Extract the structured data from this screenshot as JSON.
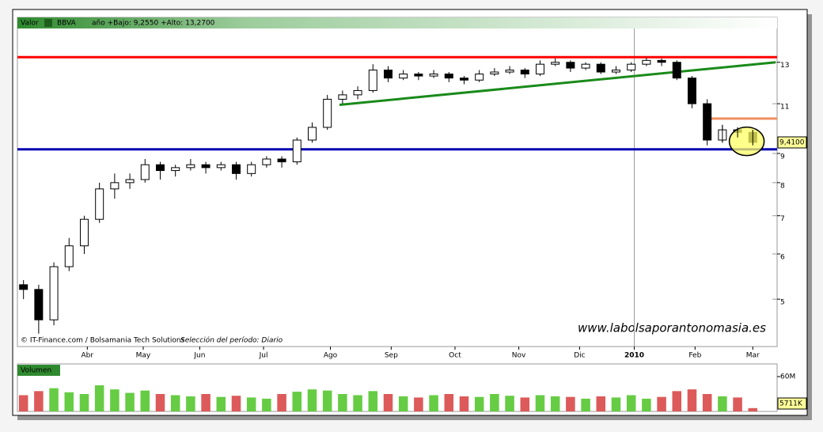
{
  "header": {
    "label": "Valor",
    "ticker": "BBVA",
    "range_text": "año +Bajo: 9,2550 +Alto: 13,2700"
  },
  "footer": {
    "credit": "© IT-Finance.com / Bolsamania Tech Solutions",
    "period": "Selección del período: Diario"
  },
  "watermark": "www.labolsaporantonomasia.es",
  "chart_data": [
    {
      "type": "candlestick",
      "log_scale": true,
      "up_color": "#ffffff",
      "down_color": "#000000",
      "x": [
        2,
        7,
        12,
        17,
        22,
        27,
        32,
        37,
        42,
        47,
        52,
        57,
        62,
        67,
        72,
        77,
        82,
        87,
        92,
        97,
        102,
        107,
        112,
        117,
        122,
        127,
        132,
        137,
        142,
        147,
        152,
        157,
        162,
        167,
        172,
        177,
        182,
        187,
        192,
        197,
        202,
        207,
        212,
        217,
        222,
        227,
        232,
        237,
        242
      ],
      "open": [
        5.3,
        5.2,
        4.6,
        5.7,
        6.2,
        6.9,
        7.8,
        8.0,
        8.1,
        8.6,
        8.4,
        8.5,
        8.6,
        8.5,
        8.6,
        8.3,
        8.6,
        8.8,
        8.7,
        9.5,
        10.0,
        11.2,
        11.4,
        11.6,
        12.6,
        12.2,
        12.4,
        12.3,
        12.4,
        12.2,
        12.1,
        12.4,
        12.5,
        12.6,
        12.4,
        12.9,
        13.0,
        12.7,
        12.9,
        12.5,
        12.6,
        12.9,
        13.1,
        13.0,
        12.2,
        11.0,
        9.5,
        9.9,
        9.8
      ],
      "high": [
        5.4,
        5.3,
        5.8,
        6.4,
        7.0,
        8.0,
        8.3,
        8.3,
        8.8,
        8.7,
        8.6,
        8.8,
        8.7,
        8.7,
        8.7,
        8.7,
        8.9,
        8.9,
        9.6,
        10.2,
        11.4,
        11.6,
        11.8,
        12.9,
        12.8,
        12.6,
        12.5,
        12.6,
        12.5,
        12.3,
        12.6,
        12.7,
        12.8,
        12.7,
        13.1,
        13.2,
        13.1,
        13.0,
        13.0,
        12.8,
        13.0,
        13.25,
        13.2,
        13.1,
        12.3,
        11.2,
        10.1,
        10.0,
        9.9
      ],
      "low": [
        5.0,
        4.35,
        4.5,
        5.6,
        6.0,
        6.8,
        7.5,
        7.8,
        8.0,
        8.1,
        8.2,
        8.4,
        8.3,
        8.4,
        8.1,
        8.2,
        8.5,
        8.5,
        8.6,
        9.4,
        9.9,
        11.0,
        11.2,
        11.5,
        12.0,
        12.1,
        12.1,
        12.2,
        12.0,
        11.9,
        12.0,
        12.3,
        12.4,
        12.2,
        12.3,
        12.8,
        12.5,
        12.6,
        12.4,
        12.4,
        12.5,
        12.8,
        12.8,
        12.1,
        10.8,
        9.3,
        9.4,
        9.6,
        9.3
      ],
      "close": [
        5.2,
        4.6,
        5.7,
        6.2,
        6.9,
        7.8,
        8.0,
        8.1,
        8.6,
        8.4,
        8.5,
        8.6,
        8.5,
        8.6,
        8.3,
        8.6,
        8.8,
        8.7,
        9.5,
        10.0,
        11.2,
        11.4,
        11.6,
        12.6,
        12.2,
        12.4,
        12.3,
        12.4,
        12.2,
        12.1,
        12.4,
        12.5,
        12.6,
        12.4,
        12.9,
        13.0,
        12.7,
        12.9,
        12.5,
        12.6,
        12.9,
        13.1,
        13.0,
        12.2,
        11.0,
        9.5,
        9.9,
        9.8,
        9.41
      ],
      "last_label": "9,4100",
      "xlim": [
        0,
        250
      ],
      "xticks": [
        {
          "value": 23,
          "label": "Abr"
        },
        {
          "value": 41.4,
          "label": "May"
        },
        {
          "value": 60,
          "label": "Jun"
        },
        {
          "value": 81,
          "label": "Jul"
        },
        {
          "value": 103,
          "label": "Ago"
        },
        {
          "value": 123,
          "label": "Sep"
        },
        {
          "value": 144,
          "label": "Oct"
        },
        {
          "value": 165,
          "label": "Nov"
        },
        {
          "value": 185,
          "label": "Dic"
        },
        {
          "value": 203,
          "label": "2010"
        },
        {
          "value": 223,
          "label": "Feb"
        },
        {
          "value": 242,
          "label": "Mar"
        }
      ],
      "ylim": [
        4.13,
        14.9
      ],
      "yticks": [
        5,
        6,
        7,
        8,
        9,
        11,
        13
      ],
      "hlines": [
        {
          "value": 13.27,
          "color": "#ff0000"
        },
        {
          "value": 9.15,
          "color": "#0000b0"
        }
      ],
      "segments": [
        {
          "color": "#1a8a1a",
          "x": [
            106,
            249.5
          ],
          "values": [
            10.95,
            13.0
          ]
        },
        {
          "color": "#f09060",
          "x": [
            227,
            250
          ],
          "values": [
            10.36,
            10.36
          ]
        }
      ],
      "highlight": {
        "x": 240,
        "value": 9.45,
        "color": "#ffff66"
      }
    },
    {
      "type": "bar",
      "title": "Volumen",
      "up_color": "#66cc44",
      "down_color": "#dd5a5a",
      "x": [
        2,
        7,
        12,
        17,
        22,
        27,
        32,
        37,
        42,
        47,
        52,
        57,
        62,
        67,
        72,
        77,
        82,
        87,
        92,
        97,
        102,
        107,
        112,
        117,
        122,
        127,
        132,
        137,
        142,
        147,
        152,
        157,
        162,
        167,
        172,
        177,
        182,
        187,
        192,
        197,
        202,
        207,
        212,
        217,
        222,
        227,
        232,
        237,
        242
      ],
      "values": [
        28,
        35,
        40,
        33,
        30,
        45,
        38,
        32,
        36,
        30,
        28,
        26,
        30,
        25,
        27,
        24,
        22,
        30,
        34,
        38,
        36,
        30,
        28,
        35,
        30,
        26,
        24,
        28,
        30,
        26,
        25,
        30,
        27,
        24,
        28,
        26,
        25,
        22,
        26,
        24,
        28,
        22,
        25,
        35,
        38,
        30,
        26,
        24,
        5.711
      ],
      "last_label": "5711K",
      "xlim": [
        0,
        250
      ],
      "ylim": [
        0,
        81.8
      ],
      "yticks": [
        {
          "value": 60,
          "label": "60M"
        }
      ]
    }
  ]
}
